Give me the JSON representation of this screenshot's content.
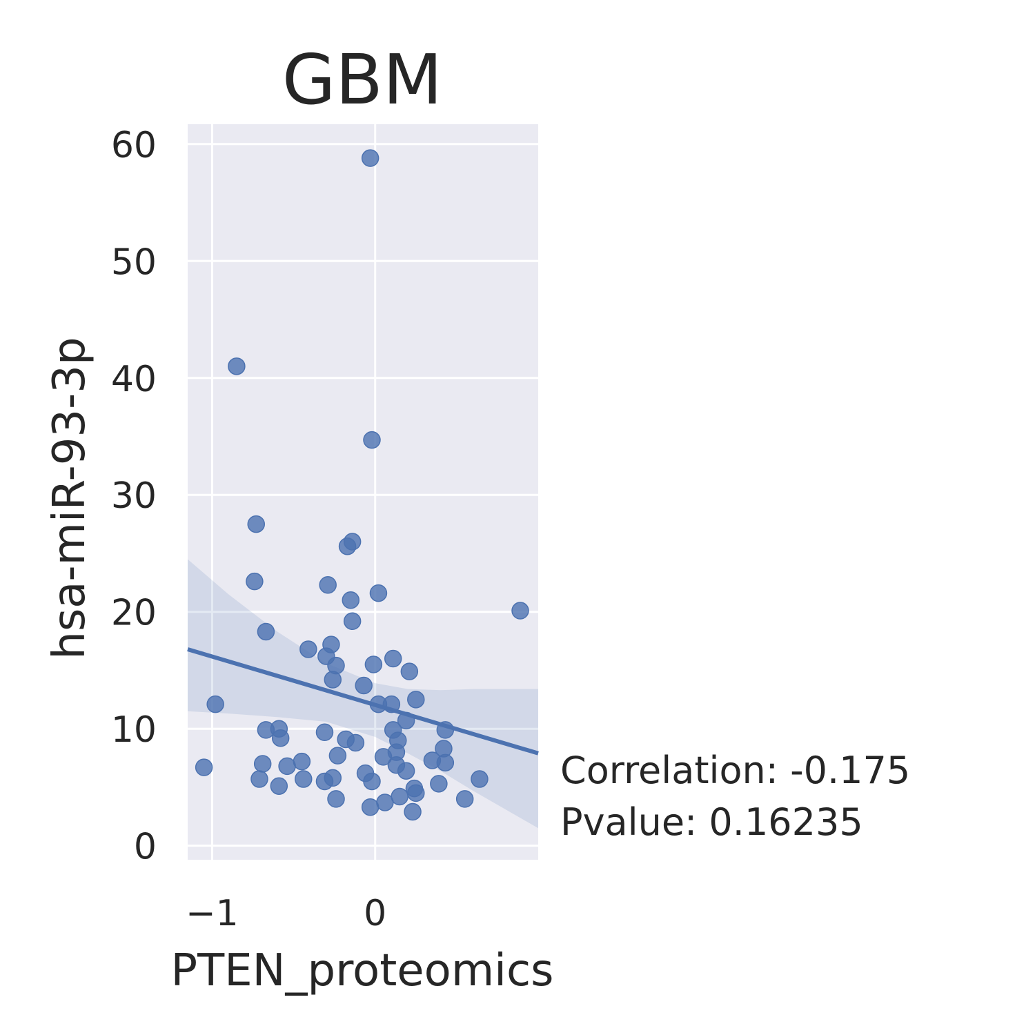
{
  "chart_data": {
    "type": "scatter",
    "title": "GBM",
    "xlabel": "PTEN_proteomics",
    "ylabel": "hsa-miR-93-3p",
    "xlim": [
      -1.15,
      1.0
    ],
    "ylim": [
      -1.2,
      61.7
    ],
    "xticks": [
      -1,
      0
    ],
    "xtick_labels": [
      "−1",
      "0"
    ],
    "yticks": [
      0,
      10,
      20,
      30,
      40,
      50,
      60
    ],
    "ytick_labels": [
      "0",
      "10",
      "20",
      "30",
      "40",
      "50",
      "60"
    ],
    "grid": true,
    "colors": {
      "background": "#eaeaf2",
      "grid": "#ffffff",
      "points": "#4c72b0",
      "band": "#4c72b0"
    },
    "points": [
      {
        "x": -0.03,
        "y": 58.8
      },
      {
        "x": -0.85,
        "y": 41.0
      },
      {
        "x": -0.02,
        "y": 34.7
      },
      {
        "x": -0.73,
        "y": 27.5
      },
      {
        "x": -0.14,
        "y": 26.0
      },
      {
        "x": -0.17,
        "y": 25.6
      },
      {
        "x": -0.74,
        "y": 22.6
      },
      {
        "x": -0.29,
        "y": 22.3
      },
      {
        "x": 0.02,
        "y": 21.6
      },
      {
        "x": -0.15,
        "y": 21.0
      },
      {
        "x": 0.89,
        "y": 20.1
      },
      {
        "x": -0.14,
        "y": 19.2
      },
      {
        "x": -0.67,
        "y": 18.3
      },
      {
        "x": -0.27,
        "y": 17.2
      },
      {
        "x": -0.41,
        "y": 16.8
      },
      {
        "x": -0.3,
        "y": 16.2
      },
      {
        "x": 0.11,
        "y": 16.0
      },
      {
        "x": -0.24,
        "y": 15.4
      },
      {
        "x": -0.01,
        "y": 15.5
      },
      {
        "x": 0.21,
        "y": 14.9
      },
      {
        "x": -0.26,
        "y": 14.2
      },
      {
        "x": -0.07,
        "y": 13.7
      },
      {
        "x": 0.25,
        "y": 12.5
      },
      {
        "x": -0.98,
        "y": 12.1
      },
      {
        "x": 0.02,
        "y": 12.1
      },
      {
        "x": 0.1,
        "y": 12.1
      },
      {
        "x": 0.19,
        "y": 10.7
      },
      {
        "x": -0.67,
        "y": 9.9
      },
      {
        "x": -0.59,
        "y": 10.0
      },
      {
        "x": 0.43,
        "y": 9.9
      },
      {
        "x": 0.11,
        "y": 9.9
      },
      {
        "x": -0.31,
        "y": 9.7
      },
      {
        "x": -0.58,
        "y": 9.2
      },
      {
        "x": -0.18,
        "y": 9.1
      },
      {
        "x": 0.14,
        "y": 9.0
      },
      {
        "x": -0.12,
        "y": 8.8
      },
      {
        "x": 0.42,
        "y": 8.3
      },
      {
        "x": 0.13,
        "y": 8.0
      },
      {
        "x": -0.23,
        "y": 7.7
      },
      {
        "x": 0.05,
        "y": 7.6
      },
      {
        "x": 0.35,
        "y": 7.3
      },
      {
        "x": -0.45,
        "y": 7.2
      },
      {
        "x": -0.69,
        "y": 7.0
      },
      {
        "x": 0.43,
        "y": 7.1
      },
      {
        "x": 0.13,
        "y": 6.9
      },
      {
        "x": -0.54,
        "y": 6.8
      },
      {
        "x": -1.05,
        "y": 6.7
      },
      {
        "x": 0.19,
        "y": 6.4
      },
      {
        "x": -0.06,
        "y": 6.2
      },
      {
        "x": -0.71,
        "y": 5.7
      },
      {
        "x": -0.44,
        "y": 5.7
      },
      {
        "x": -0.26,
        "y": 5.8
      },
      {
        "x": -0.31,
        "y": 5.5
      },
      {
        "x": 0.64,
        "y": 5.7
      },
      {
        "x": -0.02,
        "y": 5.5
      },
      {
        "x": 0.39,
        "y": 5.3
      },
      {
        "x": -0.59,
        "y": 5.1
      },
      {
        "x": 0.24,
        "y": 4.9
      },
      {
        "x": 0.25,
        "y": 4.5
      },
      {
        "x": 0.15,
        "y": 4.2
      },
      {
        "x": 0.55,
        "y": 4.0
      },
      {
        "x": -0.24,
        "y": 4.0
      },
      {
        "x": 0.06,
        "y": 3.7
      },
      {
        "x": -0.03,
        "y": 3.3
      },
      {
        "x": 0.23,
        "y": 2.9
      }
    ],
    "regression": {
      "x": [
        -1.15,
        1.0
      ],
      "y": [
        16.8,
        7.9
      ]
    },
    "confidence_band": {
      "x": [
        -1.15,
        -0.9,
        -0.6,
        -0.3,
        0.0,
        0.2,
        0.4,
        0.6,
        0.8,
        1.0
      ],
      "upper": [
        24.5,
        21.5,
        18.3,
        15.6,
        13.9,
        13.4,
        13.3,
        13.4,
        13.4,
        13.4
      ],
      "lower": [
        11.5,
        11.3,
        11.0,
        10.6,
        9.3,
        7.9,
        6.4,
        4.7,
        3.1,
        1.5
      ]
    }
  },
  "annotation": {
    "correlation": "Correlation: -0.175",
    "pvalue": "Pvalue: 0.16235"
  }
}
